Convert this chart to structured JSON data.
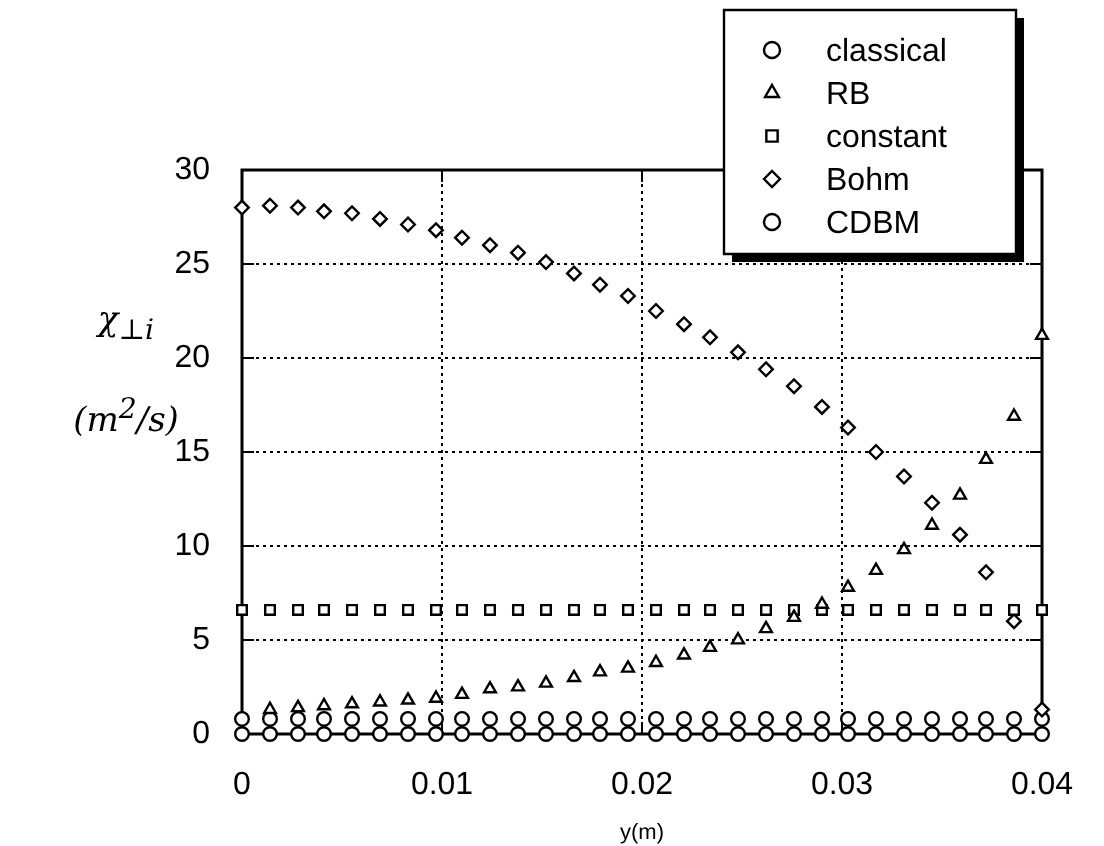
{
  "chart_data": {
    "type": "scatter",
    "xlabel": "y(m)",
    "ylabel": "χ$_{⊥i}$ (m$^{2}$/s)",
    "x": [
      0,
      0.0014,
      0.0028,
      0.0041,
      0.0055,
      0.0069,
      0.0083,
      0.0097,
      0.011,
      0.0124,
      0.0138,
      0.0152,
      0.0166,
      0.0179,
      0.0193,
      0.0207,
      0.0221,
      0.0234,
      0.0248,
      0.0262,
      0.0276,
      0.029,
      0.0303,
      0.0317,
      0.0331,
      0.0345,
      0.0359,
      0.0372,
      0.0386,
      0.04
    ],
    "series": [
      {
        "name": "classical",
        "color": "#000000",
        "marker": "circle",
        "values": [
          0,
          0,
          0,
          0,
          0,
          0,
          0,
          0,
          0,
          0,
          0,
          0,
          0,
          0,
          0,
          0,
          0,
          0,
          0,
          0,
          0,
          0,
          0,
          0,
          0,
          0,
          0,
          0,
          0,
          0
        ]
      },
      {
        "name": "RB",
        "color": "#000000",
        "marker": "triangle",
        "values": [
          null,
          1.3,
          1.4,
          1.5,
          1.6,
          1.7,
          1.8,
          1.9,
          2.1,
          2.4,
          2.5,
          2.7,
          3.0,
          3.3,
          3.5,
          3.8,
          4.2,
          4.6,
          5.0,
          5.6,
          6.2,
          6.9,
          7.8,
          8.7,
          9.8,
          11.1,
          12.7,
          14.6,
          16.9,
          21.2
        ]
      },
      {
        "name": "constant",
        "color": "#000000",
        "marker": "square",
        "values": [
          6.6,
          6.6,
          6.6,
          6.6,
          6.6,
          6.6,
          6.6,
          6.6,
          6.6,
          6.6,
          6.6,
          6.6,
          6.6,
          6.6,
          6.6,
          6.6,
          6.6,
          6.6,
          6.6,
          6.6,
          6.6,
          6.6,
          6.6,
          6.6,
          6.6,
          6.6,
          6.6,
          6.6,
          6.6,
          6.6
        ]
      },
      {
        "name": "Bohm",
        "color": "#000000",
        "marker": "diamond",
        "values": [
          28.0,
          28.1,
          28.0,
          27.8,
          27.7,
          27.4,
          27.1,
          26.8,
          26.4,
          26.0,
          25.6,
          25.1,
          24.5,
          23.9,
          23.3,
          22.5,
          21.8,
          21.1,
          20.3,
          19.4,
          18.5,
          17.4,
          16.3,
          15.0,
          13.7,
          12.3,
          10.6,
          8.6,
          6.0,
          1.3
        ]
      },
      {
        "name": "CDBM",
        "color": "#000000",
        "marker": "circle",
        "values": [
          0.8,
          0.8,
          0.8,
          0.8,
          0.8,
          0.8,
          0.8,
          0.8,
          0.8,
          0.8,
          0.8,
          0.8,
          0.8,
          0.8,
          0.8,
          0.8,
          0.8,
          0.8,
          0.8,
          0.8,
          0.8,
          0.8,
          0.8,
          0.8,
          0.8,
          0.8,
          0.8,
          0.8,
          0.8,
          0.8
        ]
      }
    ],
    "xlim": [
      0,
      0.04
    ],
    "xticks": [
      0,
      0.01,
      0.02,
      0.03,
      0.04
    ],
    "ylim": [
      0,
      30
    ],
    "yticks": [
      0,
      5,
      10,
      15,
      20,
      25,
      30
    ],
    "grid": true,
    "legend": "top right"
  }
}
